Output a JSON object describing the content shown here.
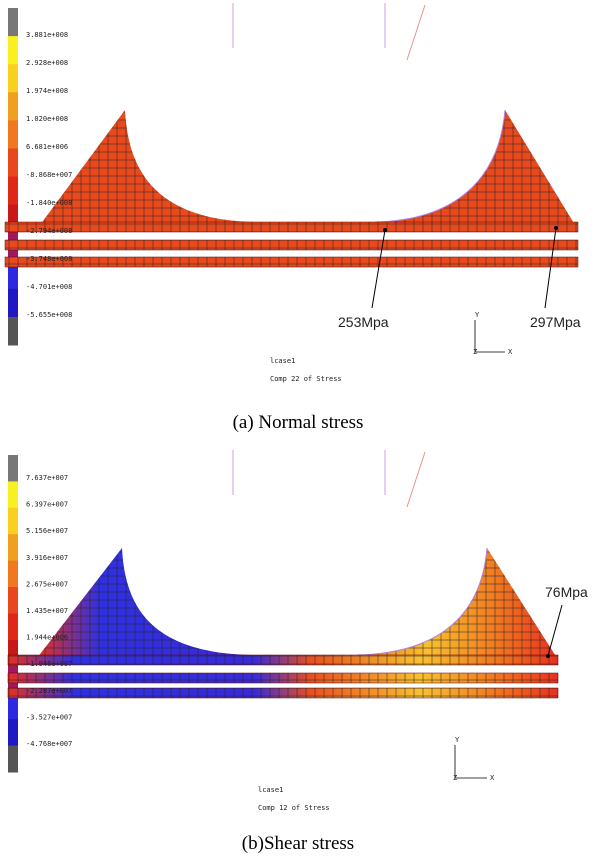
{
  "panels": [
    {
      "legend_labels": [
        "3.881e+008",
        "2.928e+008",
        "1.974e+008",
        "1.020e+008",
        "6.681e+006",
        "-8.868e+007",
        "-1.840e+008",
        "-2.794e+008",
        "-3.748e+008",
        "-4.701e+008",
        "-5.655e+008"
      ],
      "annotations": [
        "253Mpa",
        "297Mpa"
      ],
      "axes": [
        "Y",
        "Z",
        "X"
      ],
      "load_case": "lcase1",
      "component": "Comp 22 of Stress",
      "caption": "(a) Normal stress"
    },
    {
      "legend_labels": [
        "7.637e+007",
        "6.397e+007",
        "5.156e+007",
        "3.916e+007",
        "2.675e+007",
        "1.435e+007",
        "1.944e+006",
        "-1.046e+007",
        "-2.287e+007",
        "-3.527e+007",
        "-4.768e+007"
      ],
      "annotations": [
        "76Mpa"
      ],
      "axes": [
        "Y",
        "Z",
        "X"
      ],
      "load_case": "lcase1",
      "component": "Comp 12 of Stress",
      "caption": "(b)Shear stress"
    }
  ]
}
